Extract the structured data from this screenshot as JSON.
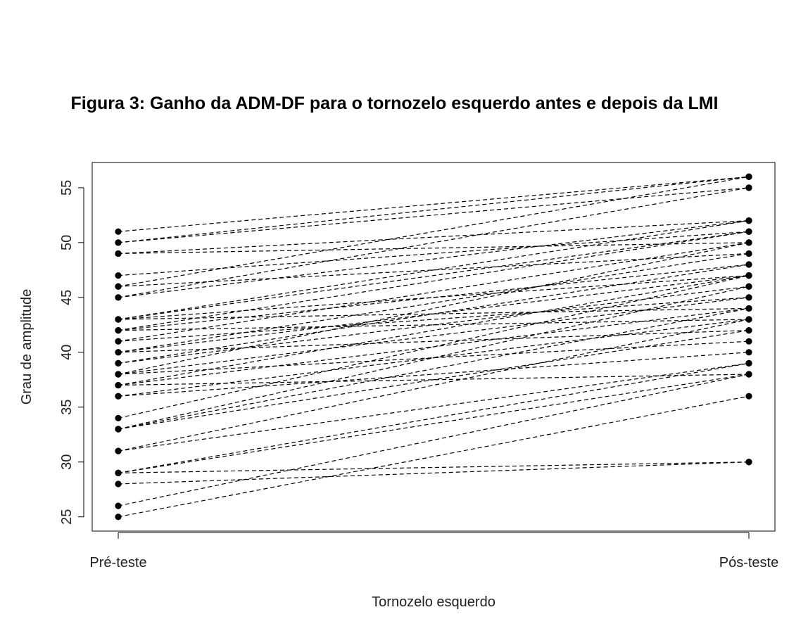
{
  "page": {
    "figure_title": "Figura 3: Ganho da ADM-DF para o tornozelo esquerdo antes e depois da LMI"
  },
  "chart_data": {
    "type": "line",
    "title": "",
    "xlabel": "Tornozelo esquerdo",
    "ylabel": "Grau de amplitude",
    "categories": [
      "Pré-teste",
      "Pós-teste"
    ],
    "ylim": [
      23.7,
      57.3
    ],
    "yticks": [
      25,
      30,
      35,
      40,
      45,
      50,
      55
    ],
    "grid": false,
    "legend": "none",
    "line_style": "dashed",
    "marker": "filled-circle",
    "colors": {
      "line": "#000000",
      "point": "#000000",
      "axis": "#000000"
    },
    "pairs": [
      [
        51,
        56
      ],
      [
        50,
        56
      ],
      [
        50,
        55
      ],
      [
        49,
        52
      ],
      [
        49,
        50
      ],
      [
        47,
        51
      ],
      [
        46,
        56
      ],
      [
        46,
        49
      ],
      [
        45,
        55
      ],
      [
        45,
        52
      ],
      [
        43,
        52
      ],
      [
        43,
        51
      ],
      [
        43,
        47
      ],
      [
        43,
        44
      ],
      [
        42,
        51
      ],
      [
        42,
        48
      ],
      [
        42,
        43
      ],
      [
        41,
        50
      ],
      [
        41,
        45
      ],
      [
        40,
        49
      ],
      [
        40,
        47
      ],
      [
        40,
        42
      ],
      [
        39,
        48
      ],
      [
        39,
        46
      ],
      [
        38,
        50
      ],
      [
        38,
        45
      ],
      [
        38,
        41
      ],
      [
        37,
        47
      ],
      [
        37,
        44
      ],
      [
        37,
        38
      ],
      [
        36,
        43
      ],
      [
        36,
        40
      ],
      [
        34,
        47
      ],
      [
        33,
        46
      ],
      [
        33,
        44
      ],
      [
        33,
        42
      ],
      [
        31,
        43
      ],
      [
        31,
        39
      ],
      [
        29,
        39
      ],
      [
        29,
        38
      ],
      [
        29,
        30
      ],
      [
        28,
        30
      ],
      [
        26,
        38
      ],
      [
        25,
        36
      ]
    ]
  }
}
